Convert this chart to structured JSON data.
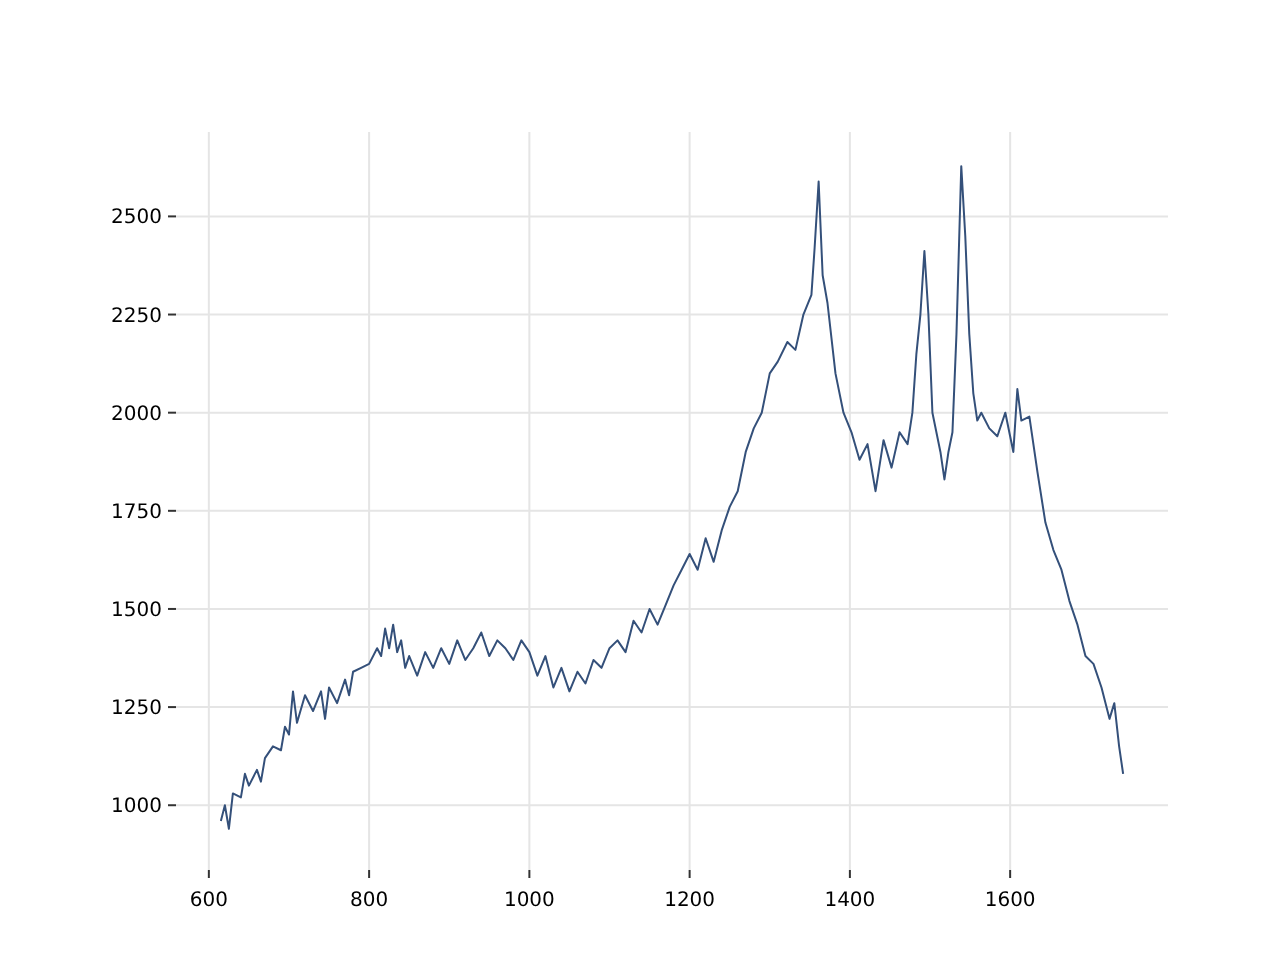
{
  "chart_data": {
    "type": "line",
    "xlim": [
      559,
      1797
    ],
    "ylim": [
      835,
      2715
    ],
    "xticks": [
      600,
      800,
      1000,
      1200,
      1400,
      1600
    ],
    "yticks": [
      1000,
      1250,
      1500,
      1750,
      2000,
      2250,
      2500
    ],
    "grid": true,
    "series": [
      {
        "color": "#34507a",
        "x": [
          615,
          620,
          625,
          630,
          640,
          645,
          650,
          660,
          665,
          670,
          680,
          690,
          695,
          700,
          705,
          710,
          720,
          730,
          740,
          745,
          750,
          760,
          770,
          775,
          780,
          790,
          800,
          810,
          815,
          820,
          825,
          830,
          835,
          840,
          845,
          850,
          860,
          870,
          880,
          890,
          900,
          910,
          920,
          930,
          940,
          950,
          960,
          970,
          980,
          990,
          1000,
          1010,
          1020,
          1030,
          1040,
          1050,
          1060,
          1070,
          1080,
          1090,
          1100,
          1110,
          1120,
          1130,
          1140,
          1150,
          1160,
          1170,
          1180,
          1190,
          1200,
          1210,
          1220,
          1230,
          1240,
          1250,
          1260,
          1270,
          1280,
          1290,
          1300,
          1310,
          1322,
          1332,
          1342,
          1352,
          1356,
          1361,
          1366,
          1372,
          1382,
          1392,
          1402,
          1412,
          1422,
          1432,
          1442,
          1452,
          1462,
          1472,
          1478,
          1483,
          1488,
          1493,
          1498,
          1503,
          1513,
          1518,
          1523,
          1528,
          1533,
          1539,
          1544,
          1549,
          1554,
          1559,
          1564,
          1574,
          1584,
          1594,
          1604,
          1609,
          1614,
          1624,
          1634,
          1644,
          1654,
          1664,
          1674,
          1684,
          1694,
          1704,
          1714,
          1724,
          1730,
          1736,
          1741
        ],
        "values": [
          960,
          1000,
          940,
          1030,
          1020,
          1080,
          1050,
          1090,
          1060,
          1120,
          1150,
          1140,
          1200,
          1180,
          1290,
          1210,
          1280,
          1240,
          1290,
          1220,
          1300,
          1260,
          1320,
          1280,
          1340,
          1350,
          1360,
          1400,
          1380,
          1450,
          1400,
          1460,
          1390,
          1420,
          1350,
          1380,
          1330,
          1390,
          1350,
          1400,
          1360,
          1420,
          1370,
          1400,
          1440,
          1380,
          1420,
          1400,
          1370,
          1420,
          1390,
          1330,
          1380,
          1300,
          1350,
          1290,
          1340,
          1310,
          1370,
          1350,
          1400,
          1420,
          1390,
          1470,
          1440,
          1500,
          1460,
          1510,
          1560,
          1600,
          1640,
          1600,
          1680,
          1620,
          1700,
          1760,
          1800,
          1900,
          1960,
          2000,
          2100,
          2130,
          2180,
          2160,
          2250,
          2300,
          2420,
          2589,
          2350,
          2280,
          2100,
          2000,
          1950,
          1880,
          1920,
          1800,
          1930,
          1860,
          1950,
          1920,
          2000,
          2150,
          2250,
          2412,
          2250,
          2000,
          1900,
          1830,
          1900,
          1950,
          2200,
          2628,
          2450,
          2200,
          2050,
          1980,
          2000,
          1960,
          1940,
          2000,
          1900,
          2060,
          1980,
          1990,
          1850,
          1720,
          1650,
          1600,
          1520,
          1460,
          1380,
          1360,
          1300,
          1220,
          1260,
          1150,
          1080
        ]
      }
    ]
  }
}
